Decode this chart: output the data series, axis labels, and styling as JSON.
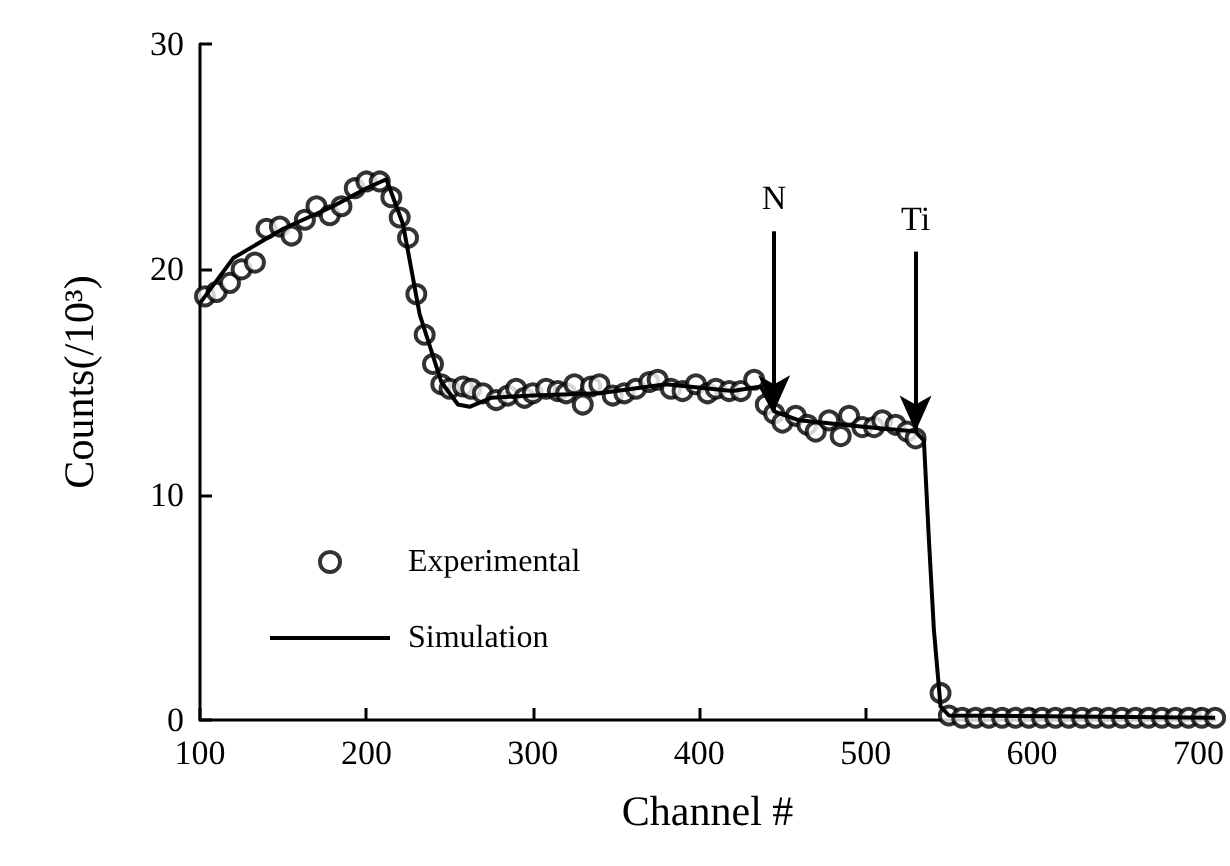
{
  "chart_data": {
    "type": "scatter",
    "xlabel": "Channel #",
    "ylabel": "Counts(/10³)",
    "xlim": [
      100,
      710
    ],
    "xticks": [
      100,
      200,
      300,
      400,
      500,
      600,
      700
    ],
    "ylim": [
      0,
      30
    ],
    "yticks": [
      0,
      10,
      20,
      30
    ],
    "grid": false,
    "legend": "left",
    "annotations": [
      {
        "text": "N",
        "x": 445,
        "y": 13.7
      },
      {
        "text": "Ti",
        "x": 530,
        "y": 12.8
      }
    ],
    "series": [
      {
        "name": "Experimental",
        "marker": "circle",
        "color": "#000000",
        "x": [
          103,
          110,
          118,
          125,
          133,
          140,
          148,
          155,
          163,
          170,
          178,
          185,
          193,
          200,
          208,
          215,
          220,
          225,
          230,
          235,
          240,
          245,
          250,
          258,
          263,
          270,
          278,
          285,
          290,
          295,
          300,
          308,
          315,
          320,
          325,
          330,
          335,
          340,
          348,
          355,
          362,
          370,
          375,
          383,
          390,
          398,
          405,
          410,
          418,
          425,
          433,
          440,
          445,
          450,
          458,
          465,
          470,
          478,
          485,
          490,
          498,
          505,
          510,
          518,
          525,
          530,
          545,
          550,
          558,
          566,
          574,
          582,
          590,
          598,
          606,
          614,
          622,
          630,
          638,
          646,
          654,
          662,
          670,
          678,
          686,
          694,
          702,
          710
        ],
        "values": [
          18.8,
          19.0,
          19.4,
          20.0,
          20.3,
          21.8,
          21.9,
          21.5,
          22.2,
          22.8,
          22.4,
          22.8,
          23.6,
          23.9,
          23.9,
          23.2,
          22.3,
          21.4,
          18.9,
          17.1,
          15.8,
          14.9,
          14.7,
          14.8,
          14.7,
          14.5,
          14.2,
          14.4,
          14.7,
          14.3,
          14.5,
          14.7,
          14.6,
          14.5,
          14.9,
          14.0,
          14.8,
          14.9,
          14.4,
          14.5,
          14.7,
          15.0,
          15.1,
          14.7,
          14.6,
          14.9,
          14.5,
          14.7,
          14.6,
          14.6,
          15.1,
          14.0,
          13.6,
          13.2,
          13.5,
          13.1,
          12.8,
          13.3,
          12.6,
          13.5,
          13.0,
          13.0,
          13.3,
          13.1,
          12.8,
          12.5,
          1.2,
          0.2,
          0.1,
          0.1,
          0.1,
          0.1,
          0.1,
          0.1,
          0.1,
          0.1,
          0.1,
          0.1,
          0.1,
          0.1,
          0.1,
          0.1,
          0.1,
          0.1,
          0.1,
          0.1,
          0.1,
          0.1
        ]
      },
      {
        "name": "Simulation",
        "type": "line",
        "marker": "none",
        "line_style": "solid",
        "color": "#000000",
        "x": [
          100,
          120,
          150,
          180,
          200,
          212,
          222,
          232,
          245,
          255,
          262,
          275,
          300,
          340,
          380,
          420,
          437,
          445,
          460,
          500,
          530,
          535,
          538,
          541,
          545,
          550,
          710
        ],
        "values": [
          18.5,
          20.5,
          21.8,
          22.8,
          23.6,
          24.0,
          22.0,
          18.0,
          15.0,
          14.0,
          13.9,
          14.3,
          14.4,
          14.5,
          14.9,
          14.6,
          14.8,
          13.7,
          13.3,
          13.0,
          12.8,
          12.4,
          8.0,
          4.0,
          0.6,
          0.2,
          0.1
        ]
      }
    ]
  }
}
